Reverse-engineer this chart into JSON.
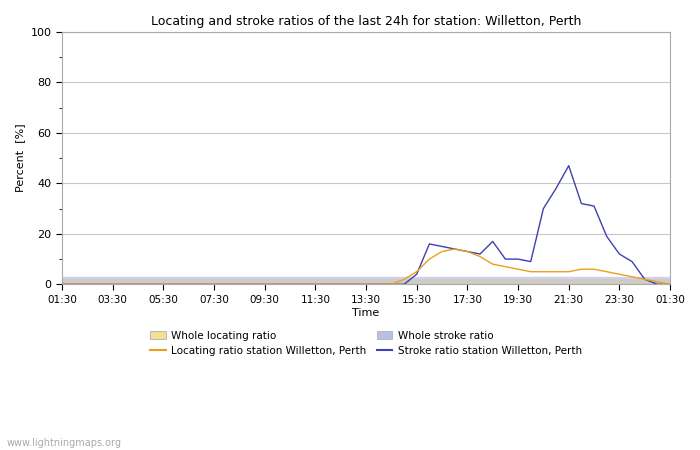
{
  "title": "Locating and stroke ratios of the last 24h for station: Willetton, Perth",
  "ylabel": "Percent  [%]",
  "xlabel": "Time",
  "xlim": [
    0,
    48
  ],
  "ylim": [
    0,
    100
  ],
  "yticks": [
    0,
    20,
    40,
    60,
    80,
    100
  ],
  "xtick_labels": [
    "01:30",
    "03:30",
    "05:30",
    "07:30",
    "09:30",
    "11:30",
    "13:30",
    "15:30",
    "17:30",
    "19:30",
    "21:30",
    "23:30",
    "01:30"
  ],
  "watermark": "www.lightningmaps.org",
  "background_color": "#ffffff",
  "plot_bg_color": "#ffffff",
  "grid_color": "#c8c8c8",
  "locating_line_color": "#e8a020",
  "locating_fill_color": "#f5e090",
  "stroke_line_color": "#4040b0",
  "stroke_fill_color": "#b8c0e8",
  "whole_locating_y": [
    2,
    2,
    2,
    2,
    2,
    2,
    2,
    2,
    2,
    2,
    2,
    2,
    2,
    2,
    2,
    2,
    2,
    2,
    2,
    2,
    2,
    2,
    2,
    2,
    2,
    2,
    2,
    2,
    2,
    2,
    2,
    2,
    2,
    2,
    2,
    2,
    2,
    2,
    2,
    2,
    2,
    2,
    2,
    2,
    2,
    2,
    2,
    2,
    2
  ],
  "whole_stroke_y": [
    3,
    3,
    3,
    3,
    3,
    3,
    3,
    3,
    3,
    3,
    3,
    3,
    3,
    3,
    3,
    3,
    3,
    3,
    3,
    3,
    3,
    3,
    3,
    3,
    3,
    3,
    3,
    3,
    3,
    3,
    3,
    3,
    3,
    3,
    3,
    3,
    3,
    3,
    3,
    3,
    3,
    3,
    3,
    3,
    3,
    3,
    3,
    3,
    3
  ],
  "x": [
    0,
    1,
    2,
    3,
    4,
    5,
    6,
    7,
    8,
    9,
    10,
    11,
    12,
    13,
    14,
    15,
    16,
    17,
    18,
    19,
    20,
    21,
    22,
    23,
    24,
    25,
    26,
    27,
    28,
    29,
    30,
    31,
    32,
    33,
    34,
    35,
    36,
    37,
    38,
    39,
    40,
    41,
    42,
    43,
    44,
    45,
    46,
    47,
    48
  ],
  "station_locating_y": [
    0,
    0,
    0,
    0,
    0,
    0,
    0,
    0,
    0,
    0,
    0,
    0,
    0,
    0,
    0,
    0,
    0,
    0,
    0,
    0,
    0,
    0,
    0,
    0,
    0,
    0,
    0,
    2,
    5,
    10,
    13,
    14,
    13,
    11,
    8,
    7,
    6,
    5,
    5,
    5,
    5,
    6,
    6,
    5,
    4,
    3,
    2,
    1,
    0
  ],
  "station_stroke_y": [
    0,
    0,
    0,
    0,
    0,
    0,
    0,
    0,
    0,
    0,
    0,
    0,
    0,
    0,
    0,
    0,
    0,
    0,
    0,
    0,
    0,
    0,
    0,
    0,
    0,
    0,
    0,
    0,
    4,
    16,
    15,
    14,
    13,
    12,
    17,
    10,
    10,
    9,
    30,
    38,
    47,
    32,
    31,
    19,
    12,
    9,
    2,
    0,
    0
  ]
}
